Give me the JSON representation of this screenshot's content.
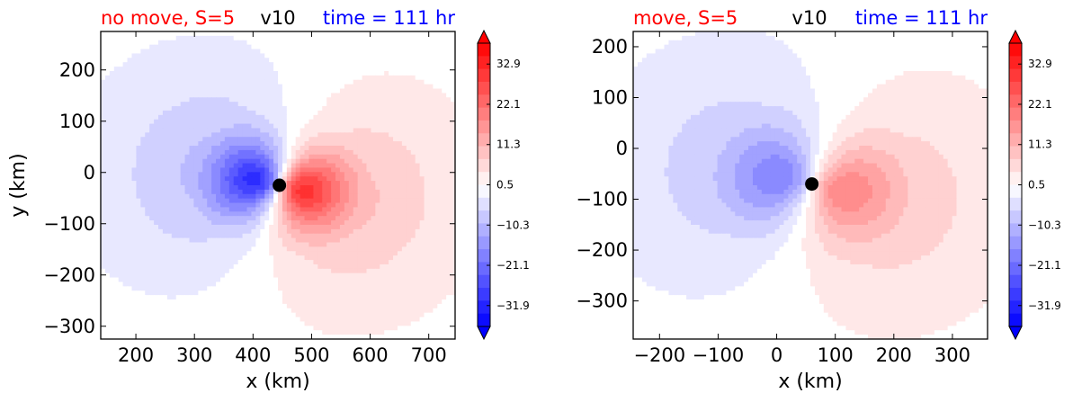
{
  "colors": {
    "title_left": "#ff0000",
    "title_mid": "#000000",
    "title_right": "#0000ff",
    "marker": "#000000",
    "cmap_negative": "#0000ff",
    "cmap_neutral": "#ffffff",
    "cmap_positive": "#ff0000"
  },
  "chart_data": [
    {
      "type": "heatmap",
      "title_left": "no move, S=5",
      "title_mid": "v10",
      "title_right": "time = 111 hr",
      "xlabel": "x (km)",
      "ylabel": "y (km)",
      "xlim": [
        140,
        745
      ],
      "ylim": [
        -325,
        275
      ],
      "xticks": [
        200,
        300,
        400,
        500,
        600,
        700
      ],
      "xtick_labels": [
        "200",
        "300",
        "400",
        "500",
        "600",
        "700"
      ],
      "yticks": [
        200,
        100,
        0,
        -100,
        -200,
        -300
      ],
      "ytick_labels": [
        "200",
        "100",
        "0",
        "−100",
        "−200",
        "−300"
      ],
      "center": [
        445,
        -25
      ],
      "colorbar": {
        "range": [
          -37.5,
          38.5
        ],
        "ticks": [
          32.9,
          22.1,
          11.3,
          0.5,
          -10.3,
          -21.1,
          -31.9
        ],
        "tick_labels": [
          "32.9",
          "22.1",
          "11.3",
          "0.5",
          "−10.3",
          "−21.1",
          "−31.9"
        ],
        "extend": "both"
      },
      "field": {
        "core_strength": 30,
        "core_radius_km": 45,
        "outer_strength": 13,
        "outer_radius_km": 200,
        "rotation_axis": "y",
        "positive_side": "east"
      }
    },
    {
      "type": "heatmap",
      "title_left": "move, S=5",
      "title_mid": "v10",
      "title_right": "time = 111 hr",
      "xlabel": "x (km)",
      "ylabel": "",
      "xlim": [
        -245,
        360
      ],
      "ylim": [
        -375,
        230
      ],
      "xticks": [
        -200,
        -100,
        0,
        100,
        200,
        300
      ],
      "xtick_labels": [
        "−200",
        "−100",
        "0",
        "100",
        "200",
        "300"
      ],
      "yticks": [
        200,
        100,
        0,
        -100,
        -200,
        -300
      ],
      "ytick_labels": [
        "200",
        "100",
        "0",
        "−100",
        "−200",
        "−300"
      ],
      "center": [
        60,
        -70
      ],
      "colorbar": {
        "range": [
          -37.5,
          38.5
        ],
        "ticks": [
          32.9,
          22.1,
          11.3,
          0.5,
          -10.3,
          -21.1,
          -31.9
        ],
        "tick_labels": [
          "32.9",
          "22.1",
          "11.3",
          "0.5",
          "−10.3",
          "−21.1",
          "−31.9"
        ],
        "extend": "both"
      },
      "field": {
        "core_strength": 18,
        "core_radius_km": 60,
        "outer_strength": 11,
        "outer_radius_km": 220,
        "rotation_axis": "y",
        "positive_side": "east"
      }
    }
  ]
}
